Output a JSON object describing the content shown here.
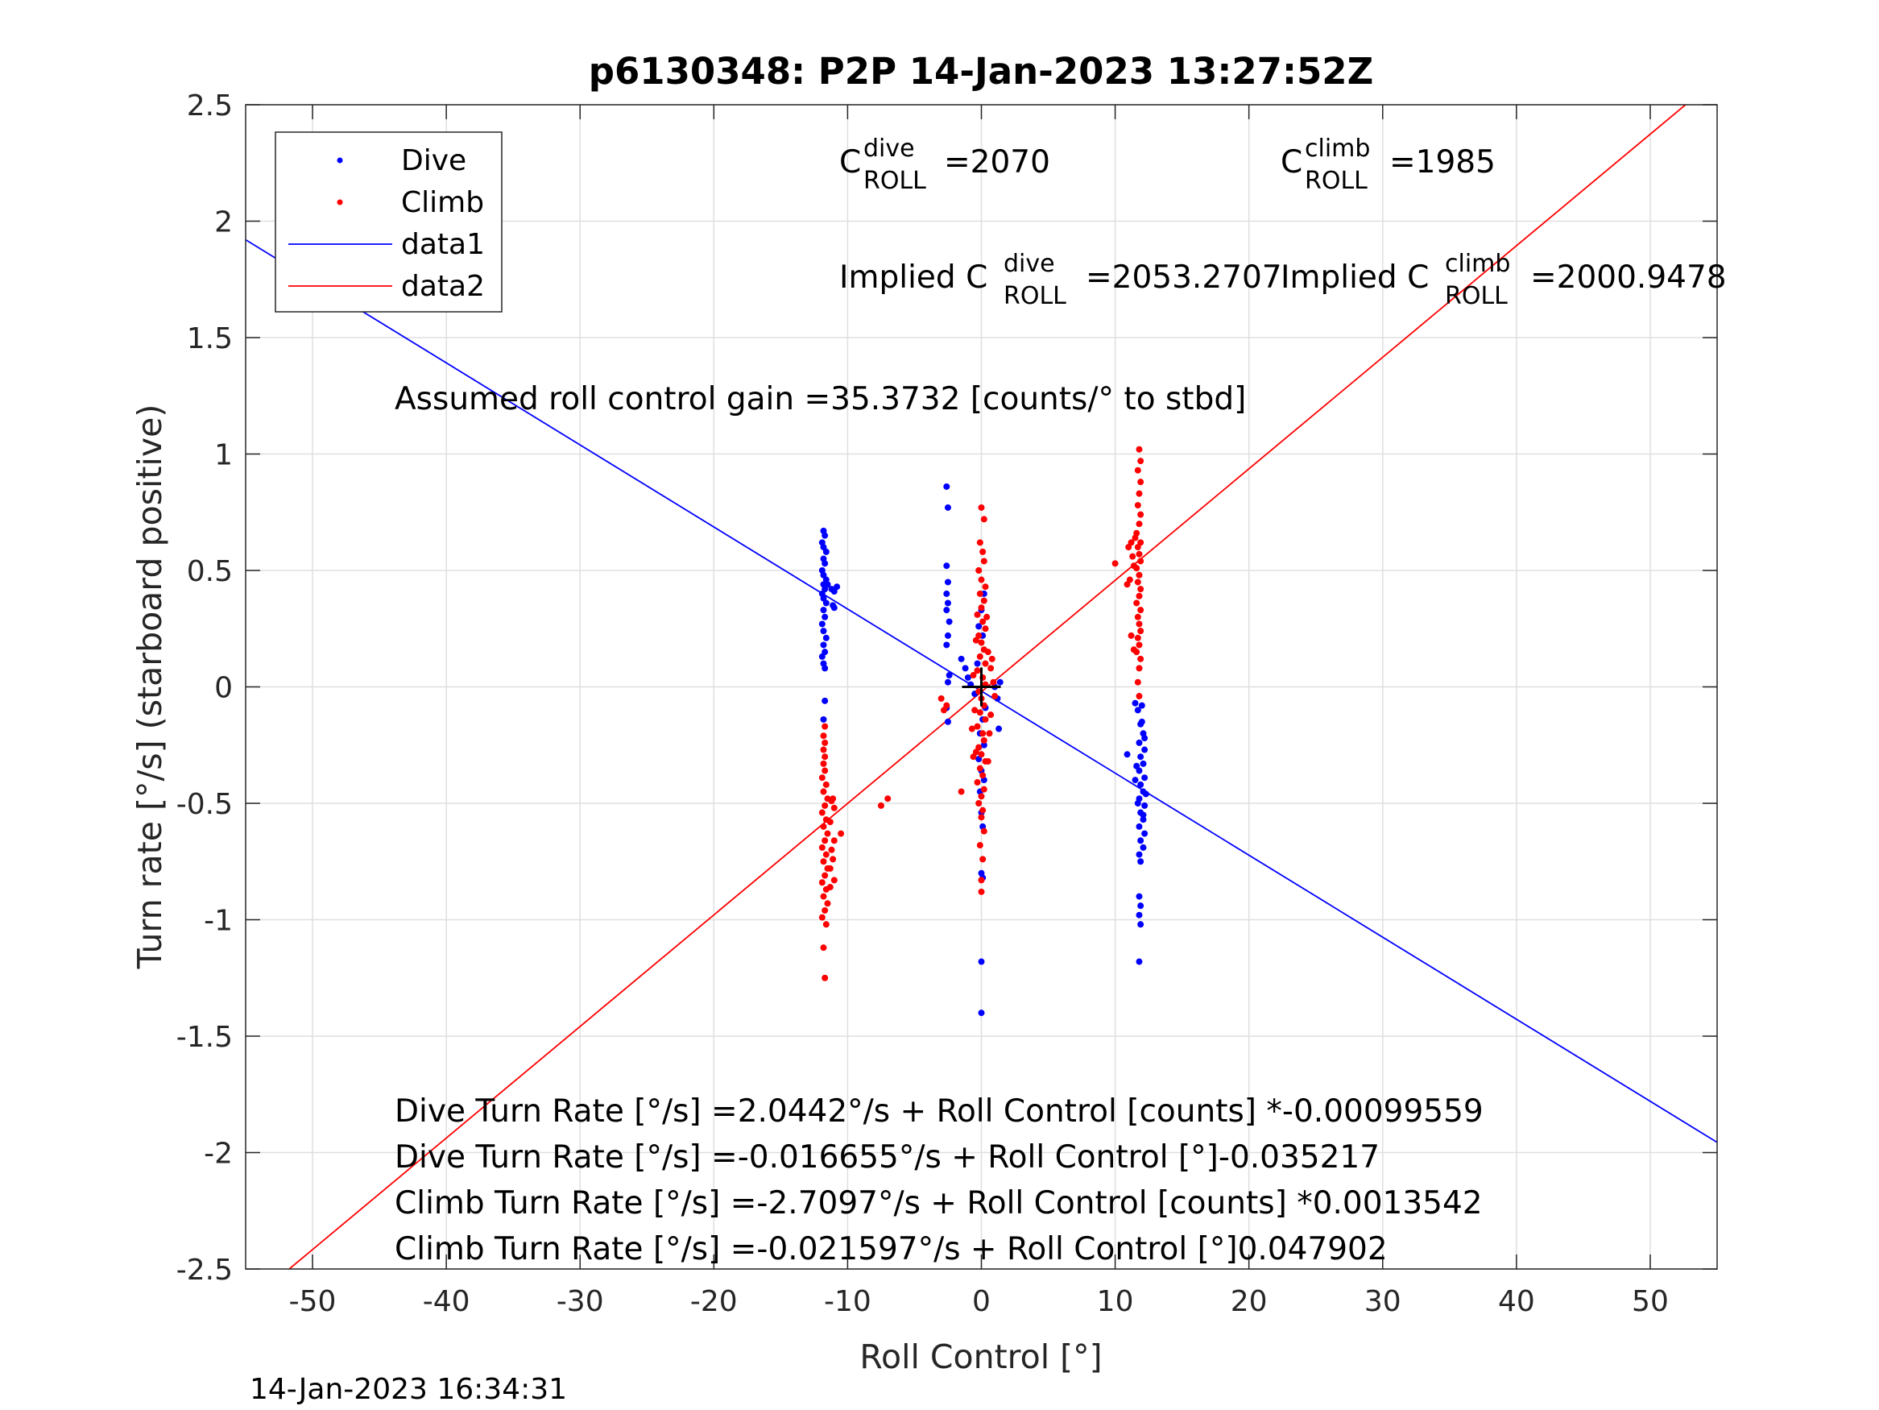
{
  "chart_data": {
    "type": "scatter",
    "title": "p6130348: P2P 14-Jan-2023 13:27:52Z",
    "xlabel": "Roll Control [°]",
    "ylabel": "Turn rate [°/s] (starboard positive)",
    "xlim": [
      -55,
      55
    ],
    "ylim": [
      -2.5,
      2.5
    ],
    "xticks": [
      -50,
      -40,
      -30,
      -20,
      -10,
      0,
      10,
      20,
      30,
      40,
      50
    ],
    "xtick_labels": [
      "-50",
      "-40",
      "-30",
      "-20",
      "-10",
      "0",
      "10",
      "20",
      "30",
      "40",
      "50"
    ],
    "yticks": [
      2.5,
      2,
      1.5,
      1,
      0.5,
      0,
      -0.5,
      -1,
      -1.5,
      -2,
      -2.5
    ],
    "ytick_labels": [
      "2.5",
      "2",
      "1.5",
      "1",
      "0.5",
      "0",
      "-0.5",
      "-1",
      "-1.5",
      "-2",
      "-2.5"
    ],
    "grid": true,
    "legend": {
      "position": "top-left",
      "entries": [
        {
          "label": "Dive",
          "kind": "marker",
          "color": "#0000ff"
        },
        {
          "label": "Climb",
          "kind": "marker",
          "color": "#ff0000"
        },
        {
          "label": "data1",
          "kind": "line",
          "color": "#0000ff"
        },
        {
          "label": "data2",
          "kind": "line",
          "color": "#ff0000"
        }
      ]
    },
    "series": [
      {
        "name": "Dive",
        "color": "#0000ff",
        "points": [
          [
            -11.8,
            0.67
          ],
          [
            -11.7,
            0.65
          ],
          [
            -11.9,
            0.62
          ],
          [
            -11.8,
            0.6
          ],
          [
            -11.6,
            0.58
          ],
          [
            -11.8,
            0.55
          ],
          [
            -11.7,
            0.53
          ],
          [
            -11.9,
            0.5
          ],
          [
            -11.8,
            0.48
          ],
          [
            -11.6,
            0.46
          ],
          [
            -11.8,
            0.44
          ],
          [
            -11.7,
            0.42
          ],
          [
            -11.9,
            0.4
          ],
          [
            -11.8,
            0.38
          ],
          [
            -11.6,
            0.36
          ],
          [
            -11.8,
            0.33
          ],
          [
            -11.7,
            0.3
          ],
          [
            -11.9,
            0.27
          ],
          [
            -11.8,
            0.24
          ],
          [
            -11.6,
            0.21
          ],
          [
            -11.8,
            0.18
          ],
          [
            -11.7,
            0.15
          ],
          [
            -11.9,
            0.13
          ],
          [
            -11.8,
            0.1
          ],
          [
            -11.7,
            0.08
          ],
          [
            -11.5,
            0.44
          ],
          [
            -11.2,
            0.42
          ],
          [
            -11.0,
            0.41
          ],
          [
            -10.8,
            0.43
          ],
          [
            -11.1,
            0.35
          ],
          [
            -11.0,
            0.34
          ],
          [
            -11.7,
            -0.06
          ],
          [
            -11.8,
            -0.14
          ],
          [
            -2.6,
            0.86
          ],
          [
            -2.5,
            0.77
          ],
          [
            -2.6,
            0.52
          ],
          [
            -2.5,
            0.45
          ],
          [
            -2.6,
            0.4
          ],
          [
            -2.5,
            0.36
          ],
          [
            -2.6,
            0.33
          ],
          [
            -2.4,
            0.28
          ],
          [
            -2.5,
            0.22
          ],
          [
            -2.6,
            0.18
          ],
          [
            -2.4,
            0.05
          ],
          [
            -2.5,
            0.02
          ],
          [
            -2.6,
            -0.09
          ],
          [
            -2.5,
            -0.15
          ],
          [
            -1.5,
            0.12
          ],
          [
            -1.2,
            0.08
          ],
          [
            -1.0,
            0.04
          ],
          [
            -0.8,
            0.01
          ],
          [
            -0.5,
            -0.03
          ],
          [
            -0.3,
            0.1
          ],
          [
            0.0,
            -0.8
          ],
          [
            0.1,
            -0.82
          ],
          [
            0.0,
            -1.18
          ],
          [
            0.0,
            -1.4
          ],
          [
            0.1,
            -0.6
          ],
          [
            0.0,
            -0.54
          ],
          [
            -0.1,
            -0.45
          ],
          [
            0.2,
            -0.4
          ],
          [
            0.0,
            -0.36
          ],
          [
            -0.2,
            -0.31
          ],
          [
            0.2,
            -0.25
          ],
          [
            -0.1,
            -0.2
          ],
          [
            0.1,
            -0.14
          ],
          [
            0.3,
            -0.09
          ],
          [
            0.0,
            0.33
          ],
          [
            0.2,
            0.4
          ],
          [
            -0.2,
            0.26
          ],
          [
            0.1,
            0.22
          ],
          [
            1.0,
            0.0
          ],
          [
            1.2,
            -0.05
          ],
          [
            1.4,
            0.02
          ],
          [
            1.3,
            -0.18
          ],
          [
            11.5,
            -0.07
          ],
          [
            11.7,
            -0.1
          ],
          [
            12.0,
            -0.08
          ],
          [
            11.9,
            -0.16
          ],
          [
            12.1,
            -0.2
          ],
          [
            11.8,
            -0.24
          ],
          [
            12.2,
            -0.27
          ],
          [
            11.9,
            -0.3
          ],
          [
            12.1,
            -0.33
          ],
          [
            11.8,
            -0.36
          ],
          [
            12.2,
            -0.39
          ],
          [
            11.9,
            -0.42
          ],
          [
            12.1,
            -0.45
          ],
          [
            11.8,
            -0.48
          ],
          [
            12.2,
            -0.51
          ],
          [
            11.9,
            -0.54
          ],
          [
            12.1,
            -0.57
          ],
          [
            11.8,
            -0.6
          ],
          [
            12.2,
            -0.63
          ],
          [
            11.9,
            -0.66
          ],
          [
            12.1,
            -0.69
          ],
          [
            11.8,
            -0.72
          ],
          [
            11.9,
            -0.75
          ],
          [
            10.9,
            -0.29
          ],
          [
            11.5,
            -0.4
          ],
          [
            11.8,
            -0.9
          ],
          [
            11.9,
            -0.94
          ],
          [
            11.8,
            -0.98
          ],
          [
            11.9,
            -1.02
          ],
          [
            11.8,
            -1.18
          ],
          [
            12.0,
            -0.15
          ],
          [
            12.1,
            -0.55
          ],
          [
            11.7,
            -0.5
          ],
          [
            12.3,
            -0.46
          ],
          [
            11.6,
            -0.34
          ],
          [
            12.2,
            -0.22
          ]
        ]
      },
      {
        "name": "Climb",
        "color": "#ff0000",
        "points": [
          [
            -11.7,
            -1.25
          ],
          [
            -11.8,
            -1.12
          ],
          [
            -11.6,
            -1.02
          ],
          [
            -11.9,
            -0.99
          ],
          [
            -11.7,
            -0.96
          ],
          [
            -11.5,
            -0.93
          ],
          [
            -11.8,
            -0.9
          ],
          [
            -11.6,
            -0.87
          ],
          [
            -11.9,
            -0.84
          ],
          [
            -11.7,
            -0.81
          ],
          [
            -11.5,
            -0.78
          ],
          [
            -11.8,
            -0.75
          ],
          [
            -11.6,
            -0.72
          ],
          [
            -11.9,
            -0.69
          ],
          [
            -11.7,
            -0.66
          ],
          [
            -11.5,
            -0.63
          ],
          [
            -11.8,
            -0.6
          ],
          [
            -11.6,
            -0.57
          ],
          [
            -11.9,
            -0.54
          ],
          [
            -11.7,
            -0.51
          ],
          [
            -11.5,
            -0.48
          ],
          [
            -11.8,
            -0.45
          ],
          [
            -11.6,
            -0.42
          ],
          [
            -11.9,
            -0.39
          ],
          [
            -11.7,
            -0.36
          ],
          [
            -11.8,
            -0.33
          ],
          [
            -11.7,
            -0.3
          ],
          [
            -11.8,
            -0.27
          ],
          [
            -11.7,
            -0.24
          ],
          [
            -11.8,
            -0.21
          ],
          [
            -11.7,
            -0.17
          ],
          [
            -11.2,
            -0.49
          ],
          [
            -11.0,
            -0.52
          ],
          [
            -11.1,
            -0.48
          ],
          [
            -11.3,
            -0.58
          ],
          [
            -11.0,
            -0.66
          ],
          [
            -11.2,
            -0.7
          ],
          [
            -11.3,
            -0.78
          ],
          [
            -11.1,
            -0.74
          ],
          [
            -11.0,
            -0.83
          ],
          [
            -11.3,
            -0.86
          ],
          [
            -10.5,
            -0.63
          ],
          [
            -7.5,
            -0.51
          ],
          [
            -7.0,
            -0.48
          ],
          [
            -3.0,
            -0.05
          ],
          [
            -2.8,
            -0.1
          ],
          [
            -2.6,
            -0.08
          ],
          [
            -1.5,
            -0.45
          ],
          [
            -0.6,
            -0.3
          ],
          [
            0.0,
            0.77
          ],
          [
            0.2,
            0.72
          ],
          [
            -0.1,
            0.62
          ],
          [
            0.1,
            0.58
          ],
          [
            0.2,
            0.54
          ],
          [
            -0.2,
            0.5
          ],
          [
            0.0,
            0.46
          ],
          [
            0.3,
            0.43
          ],
          [
            -0.1,
            0.4
          ],
          [
            0.2,
            0.37
          ],
          [
            0.0,
            0.34
          ],
          [
            -0.3,
            0.31
          ],
          [
            0.1,
            0.28
          ],
          [
            0.3,
            0.25
          ],
          [
            -0.2,
            0.22
          ],
          [
            0.0,
            0.19
          ],
          [
            0.2,
            0.16
          ],
          [
            -0.1,
            0.13
          ],
          [
            0.3,
            0.1
          ],
          [
            -0.3,
            0.07
          ],
          [
            0.1,
            0.04
          ],
          [
            0.3,
            0.01
          ],
          [
            -0.2,
            -0.02
          ],
          [
            0.0,
            -0.05
          ],
          [
            0.2,
            -0.08
          ],
          [
            -0.1,
            -0.11
          ],
          [
            0.3,
            -0.14
          ],
          [
            -0.3,
            -0.17
          ],
          [
            0.1,
            -0.2
          ],
          [
            0.2,
            -0.23
          ],
          [
            -0.2,
            -0.26
          ],
          [
            0.0,
            -0.29
          ],
          [
            0.3,
            -0.32
          ],
          [
            -0.1,
            -0.35
          ],
          [
            0.1,
            -0.38
          ],
          [
            -0.3,
            -0.41
          ],
          [
            0.2,
            -0.44
          ],
          [
            0.0,
            -0.47
          ],
          [
            -0.2,
            -0.5
          ],
          [
            0.1,
            -0.53
          ],
          [
            0.0,
            -0.56
          ],
          [
            0.2,
            -0.62
          ],
          [
            -0.1,
            -0.68
          ],
          [
            0.1,
            -0.74
          ],
          [
            0.0,
            -0.83
          ],
          [
            0.0,
            -0.88
          ],
          [
            -0.4,
            0.2
          ],
          [
            0.5,
            0.15
          ],
          [
            0.7,
            0.08
          ],
          [
            -0.5,
            -0.1
          ],
          [
            0.6,
            -0.2
          ],
          [
            0.8,
            0.12
          ],
          [
            -0.6,
            0.05
          ],
          [
            0.5,
            -0.32
          ],
          [
            -0.4,
            -0.28
          ],
          [
            0.9,
            0.02
          ],
          [
            1.0,
            -0.04
          ],
          [
            0.7,
            -0.12
          ],
          [
            0.4,
            0.3
          ],
          [
            -0.7,
            -0.18
          ],
          [
            11.8,
            1.02
          ],
          [
            11.9,
            0.97
          ],
          [
            11.7,
            0.93
          ],
          [
            11.9,
            0.88
          ],
          [
            11.8,
            0.83
          ],
          [
            11.7,
            0.78
          ],
          [
            11.9,
            0.74
          ],
          [
            11.8,
            0.7
          ],
          [
            11.6,
            0.66
          ],
          [
            11.9,
            0.62
          ],
          [
            11.7,
            0.6
          ],
          [
            11.8,
            0.57
          ],
          [
            11.9,
            0.54
          ],
          [
            11.6,
            0.51
          ],
          [
            11.8,
            0.48
          ],
          [
            11.7,
            0.45
          ],
          [
            11.9,
            0.42
          ],
          [
            11.8,
            0.39
          ],
          [
            11.6,
            0.36
          ],
          [
            11.9,
            0.33
          ],
          [
            11.7,
            0.3
          ],
          [
            11.8,
            0.27
          ],
          [
            11.9,
            0.24
          ],
          [
            11.7,
            0.21
          ],
          [
            11.8,
            0.18
          ],
          [
            11.6,
            0.15
          ],
          [
            11.9,
            0.12
          ],
          [
            11.8,
            0.08
          ],
          [
            11.7,
            0.02
          ],
          [
            11.8,
            -0.04
          ],
          [
            11.5,
            0.64
          ],
          [
            11.2,
            0.62
          ],
          [
            11.0,
            0.6
          ],
          [
            11.3,
            0.56
          ],
          [
            11.4,
            0.52
          ],
          [
            11.1,
            0.46
          ],
          [
            10.9,
            0.44
          ],
          [
            11.2,
            0.22
          ],
          [
            11.4,
            0.16
          ],
          [
            10.0,
            0.53
          ]
        ]
      }
    ],
    "fit_lines": [
      {
        "name": "data1",
        "color": "#0000ff",
        "x": [
          -55,
          55
        ],
        "y": [
          1.92,
          -1.956
        ]
      },
      {
        "name": "data2",
        "color": "#ff0000",
        "x": [
          -55,
          55
        ],
        "y": [
          -2.656,
          2.613
        ]
      }
    ],
    "zero_marker": {
      "x": 0,
      "y": 0,
      "color": "#000000"
    },
    "annotations": {
      "c_dive": {
        "base": "C",
        "sup": "dive",
        "sub": "ROLL",
        "value": "=2070"
      },
      "c_climb": {
        "base": "C",
        "sup": "climb",
        "sub": "ROLL",
        "value": "=1985"
      },
      "implied_dive": {
        "prefix": "Implied C",
        "sup": "dive",
        "sub": "ROLL",
        "value": "=2053.2707"
      },
      "implied_climb": {
        "prefix": "Implied C",
        "sup": "climb",
        "sub": "ROLL",
        "value": "=2000.9478"
      },
      "gain": "Assumed roll control gain =35.3732 [counts/° to stbd]",
      "fit_dive_counts": "Dive Turn Rate [°/s] =2.0442°/s + Roll Control [counts] *-0.00099559",
      "fit_dive_deg": "Dive Turn Rate [°/s] =-0.016655°/s + Roll Control [°]-0.035217",
      "fit_climb_counts": "Climb Turn Rate [°/s] =-2.7097°/s + Roll Control [counts] *0.0013542",
      "fit_climb_deg": "Climb Turn Rate [°/s] =-0.021597°/s + Roll Control [°]0.047902"
    },
    "timestamp": "14-Jan-2023 16:34:31"
  }
}
